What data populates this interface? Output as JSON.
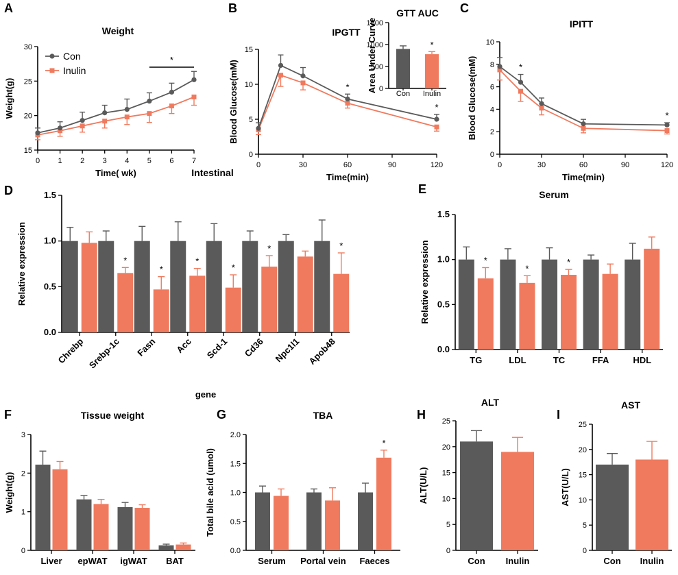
{
  "colors": {
    "con": "#5a5a5a",
    "inulin": "#f07a5e"
  },
  "chart_data": [
    {
      "id": "A",
      "type": "line",
      "panel_label": "A",
      "title": "Weight",
      "xlabel": "Time( wk)",
      "ylabel": "Weight(g)",
      "x": [
        0,
        1,
        2,
        3,
        4,
        5,
        6,
        7
      ],
      "xlim": [
        0,
        7
      ],
      "ylim": [
        15,
        30
      ],
      "xticks": [
        "0",
        "1",
        "2",
        "3",
        "4",
        "5",
        "6",
        "7"
      ],
      "yticks": [
        "15",
        "20",
        "25",
        "30"
      ],
      "legend": [
        "Con",
        "Inulin"
      ],
      "legend_position": "top-left",
      "series": [
        {
          "name": "Con",
          "values": [
            17.5,
            18.2,
            19.3,
            20.4,
            20.9,
            22.1,
            23.4,
            25.2
          ],
          "errors": [
            0.7,
            0.9,
            1.2,
            1.1,
            1.5,
            1.2,
            1.3,
            1.2
          ]
        },
        {
          "name": "Inulin",
          "values": [
            17.2,
            17.8,
            18.5,
            19.2,
            19.8,
            20.3,
            21.4,
            22.7
          ],
          "errors": [
            0.7,
            0.8,
            0.9,
            1.0,
            1.1,
            1.3,
            1.1,
            1.2
          ]
        }
      ],
      "bracket": {
        "from": 5,
        "to": 7,
        "label": "*"
      },
      "annotations": []
    },
    {
      "id": "B",
      "type": "line",
      "panel_label": "B",
      "title": "IPGTT",
      "xlabel": "Time(min)",
      "ylabel": "Blood Glucose(mM)",
      "x": [
        0,
        15,
        30,
        60,
        120
      ],
      "xlim": [
        0,
        120
      ],
      "ylim": [
        0,
        15
      ],
      "xticks": [
        "0",
        "30",
        "60",
        "90",
        "120"
      ],
      "yticks": [
        "0",
        "5",
        "10",
        "15"
      ],
      "legend": [],
      "series": [
        {
          "name": "Con",
          "values": [
            3.7,
            12.7,
            11.2,
            7.9,
            5.0
          ],
          "errors": [
            0.8,
            1.5,
            1.2,
            0.7,
            0.7
          ]
        },
        {
          "name": "Inulin",
          "values": [
            3.5,
            11.3,
            10.2,
            7.3,
            3.9
          ],
          "errors": [
            0.7,
            1.6,
            1.0,
            0.7,
            0.6
          ]
        }
      ],
      "annotations": [
        {
          "x": 60,
          "label": "*"
        },
        {
          "x": 120,
          "label": "*"
        }
      ]
    },
    {
      "id": "B-inset",
      "type": "bar",
      "title": "GTT AUC",
      "ylabel": "Area Under Curve",
      "categories": [
        "Con",
        "Inulin"
      ],
      "ylim": [
        0,
        1500
      ],
      "yticks": [
        "0",
        "500",
        "1000",
        "1500"
      ],
      "values": [
        900,
        780
      ],
      "errors": [
        70,
        60
      ],
      "stars": [
        "",
        "*"
      ]
    },
    {
      "id": "C",
      "type": "line",
      "panel_label": "C",
      "title": "IPITT",
      "xlabel": "Time(min)",
      "ylabel": "Blood Glucose(mM)",
      "x": [
        0,
        15,
        30,
        60,
        120
      ],
      "xlim": [
        0,
        120
      ],
      "ylim": [
        0,
        10
      ],
      "xticks": [
        "0",
        "30",
        "60",
        "90",
        "120"
      ],
      "yticks": [
        "0",
        "2",
        "4",
        "6",
        "8",
        "10"
      ],
      "legend": [],
      "series": [
        {
          "name": "Con",
          "values": [
            7.8,
            6.4,
            4.5,
            2.7,
            2.6
          ],
          "errors": [
            0.8,
            0.7,
            0.5,
            0.4,
            0.2
          ]
        },
        {
          "name": "Inulin",
          "values": [
            7.5,
            5.6,
            4.1,
            2.3,
            2.1
          ],
          "errors": [
            0.9,
            0.9,
            0.6,
            0.4,
            0.3
          ]
        }
      ],
      "annotations": [
        {
          "x": 15,
          "label": "*"
        },
        {
          "x": 120,
          "label": "*"
        }
      ]
    },
    {
      "id": "D",
      "type": "bar",
      "panel_label": "D",
      "title": "Intestinal",
      "xlabel": "gene",
      "ylabel": "Relative expression",
      "categories": [
        "Chrebp",
        "Srebp-1c",
        "Fasn",
        "Acc",
        "Scd-1",
        "Cd36",
        "Npc1l1",
        "Apob48"
      ],
      "ylim": [
        0,
        1.5
      ],
      "yticks": [
        "0.0",
        "0.5",
        "1.0",
        "1.5"
      ],
      "rotate_labels": true,
      "series": [
        {
          "name": "Con",
          "values": [
            1.0,
            1.0,
            1.0,
            1.0,
            1.0,
            1.0,
            1.0,
            1.0
          ],
          "errors": [
            0.15,
            0.11,
            0.16,
            0.21,
            0.19,
            0.11,
            0.07,
            0.23
          ]
        },
        {
          "name": "Inulin",
          "values": [
            0.98,
            0.65,
            0.47,
            0.62,
            0.49,
            0.72,
            0.83,
            0.64
          ],
          "errors": [
            0.12,
            0.06,
            0.14,
            0.08,
            0.14,
            0.12,
            0.06,
            0.23
          ]
        }
      ],
      "stars": [
        "",
        "*",
        "*",
        "*",
        "*",
        "*",
        "",
        "*"
      ]
    },
    {
      "id": "E",
      "type": "bar",
      "panel_label": "E",
      "title": "Serum",
      "xlabel": "",
      "ylabel": "Relative expression",
      "categories": [
        "TG",
        "LDL",
        "TC",
        "FFA",
        "HDL"
      ],
      "ylim": [
        0,
        1.5
      ],
      "yticks": [
        "0.0",
        "0.5",
        "1.0",
        "1.5"
      ],
      "series": [
        {
          "name": "Con",
          "values": [
            1.0,
            1.0,
            1.0,
            1.0,
            1.0
          ],
          "errors": [
            0.14,
            0.12,
            0.13,
            0.05,
            0.18
          ]
        },
        {
          "name": "Inulin",
          "values": [
            0.79,
            0.74,
            0.83,
            0.84,
            1.12
          ],
          "errors": [
            0.12,
            0.08,
            0.06,
            0.11,
            0.13
          ]
        }
      ],
      "stars": [
        "*",
        "*",
        "*",
        "",
        ""
      ]
    },
    {
      "id": "F",
      "type": "bar",
      "panel_label": "F",
      "title": "Tissue weight",
      "xlabel": "",
      "ylabel": "Weight(g)",
      "categories": [
        "Liver",
        "epWAT",
        "igWAT",
        "BAT"
      ],
      "ylim": [
        0,
        3
      ],
      "yticks": [
        "0",
        "1",
        "2",
        "3"
      ],
      "series": [
        {
          "name": "Con",
          "values": [
            2.22,
            1.32,
            1.12,
            0.13
          ],
          "errors": [
            0.35,
            0.1,
            0.12,
            0.03
          ]
        },
        {
          "name": "Inulin",
          "values": [
            2.1,
            1.2,
            1.1,
            0.15
          ],
          "errors": [
            0.2,
            0.12,
            0.08,
            0.04
          ]
        }
      ],
      "stars": [
        "",
        "",
        "",
        ""
      ]
    },
    {
      "id": "G",
      "type": "bar",
      "panel_label": "G",
      "title": "TBA",
      "xlabel": "",
      "ylabel": "Total bile acid (umol)",
      "categories": [
        "Serum",
        "Portal vein",
        "Faeces"
      ],
      "ylim": [
        0,
        2.0
      ],
      "yticks": [
        "0.0",
        "0.5",
        "1.0",
        "1.5",
        "2.0"
      ],
      "series": [
        {
          "name": "Con",
          "values": [
            1.0,
            1.0,
            1.0
          ],
          "errors": [
            0.11,
            0.06,
            0.16
          ]
        },
        {
          "name": "Inulin",
          "values": [
            0.94,
            0.86,
            1.6
          ],
          "errors": [
            0.12,
            0.22,
            0.13
          ]
        }
      ],
      "stars": [
        "",
        "",
        "*"
      ]
    },
    {
      "id": "H",
      "type": "bar",
      "panel_label": "H",
      "title": "ALT",
      "xlabel": "",
      "ylabel": "ALT(U/L)",
      "categories": [
        "Con",
        "Inulin"
      ],
      "ylim": [
        0,
        25
      ],
      "yticks": [
        "0",
        "5",
        "10",
        "15",
        "20",
        "25"
      ],
      "values": [
        21.0,
        19.0
      ],
      "errors": [
        2.1,
        2.8
      ],
      "stars": [
        "",
        ""
      ]
    },
    {
      "id": "I",
      "type": "bar",
      "panel_label": "I",
      "title": "AST",
      "xlabel": "",
      "ylabel": "AST(U/L)",
      "categories": [
        "Con",
        "Inulin"
      ],
      "ylim": [
        0,
        25
      ],
      "yticks": [
        "0",
        "5",
        "10",
        "15",
        "20",
        "25"
      ],
      "values": [
        17.0,
        18.0
      ],
      "errors": [
        2.2,
        3.6
      ],
      "stars": [
        "",
        ""
      ]
    }
  ]
}
